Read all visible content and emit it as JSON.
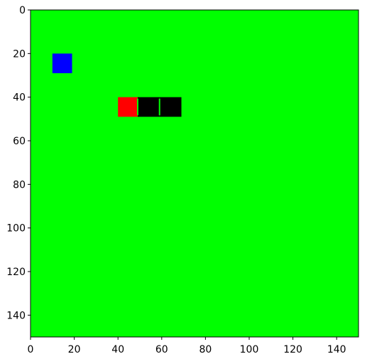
{
  "game": {
    "type": "snake",
    "grid_size": [
      150,
      150
    ],
    "colors": {
      "background": "#00ff00",
      "food": "#0000ff",
      "snake_head": "#ff0000",
      "snake_body": "#000000",
      "body_separator": "#00ff00"
    },
    "food": {
      "x": 10,
      "y": 20,
      "w": 9,
      "h": 9
    },
    "snake": {
      "head": {
        "x": 40,
        "y": 40,
        "w": 9,
        "h": 9
      },
      "body": [
        {
          "x": 49,
          "y": 40,
          "w": 10,
          "h": 9
        },
        {
          "x": 59,
          "y": 40,
          "w": 10,
          "h": 9
        }
      ],
      "separators": [
        49,
        59
      ]
    }
  },
  "axes": {
    "x_range": [
      0,
      150
    ],
    "y_range": [
      0,
      150
    ],
    "x_ticks": [
      0,
      20,
      40,
      60,
      80,
      100,
      120,
      140
    ],
    "y_ticks": [
      0,
      20,
      40,
      60,
      80,
      100,
      120,
      140
    ],
    "y_inverted": true
  }
}
